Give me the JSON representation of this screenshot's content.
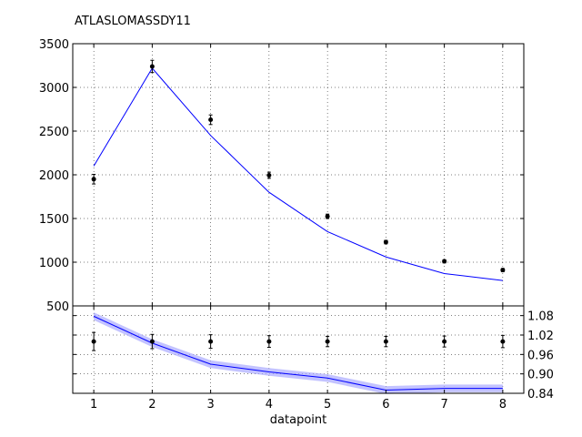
{
  "chart_data": {
    "type": "line",
    "title": "ATLASLOMASSDY11",
    "xlabel": "datapoint",
    "x": [
      1,
      2,
      3,
      4,
      5,
      6,
      7,
      8
    ],
    "main_panel": {
      "ylim": [
        500,
        3500
      ],
      "yticks": [
        500,
        1000,
        1500,
        2000,
        2500,
        3000,
        3500
      ],
      "grid": true,
      "series": [
        {
          "kind": "points_with_errorbars",
          "color": "#000000",
          "values": [
            1950,
            3240,
            2630,
            1995,
            1525,
            1230,
            1010,
            910
          ],
          "errors": [
            55,
            70,
            55,
            35,
            25,
            20,
            18,
            18
          ]
        },
        {
          "kind": "line",
          "color": "#0000ff",
          "values": [
            2100,
            3220,
            2450,
            1800,
            1350,
            1060,
            870,
            790
          ]
        }
      ]
    },
    "ratio_panel": {
      "ylim": [
        0.84,
        1.11
      ],
      "yticks": [
        0.84,
        0.9,
        0.96,
        1.02,
        1.08
      ],
      "ytick_labels": [
        "0.84",
        "0.90",
        "0.96",
        "1.02",
        "1.08"
      ],
      "grid": true,
      "series": [
        {
          "kind": "points_with_errorbars",
          "color": "#000000",
          "values": [
            1.0,
            1.0,
            1.0,
            1.0,
            1.0,
            1.0,
            1.0,
            1.0
          ],
          "errors": [
            0.028,
            0.022,
            0.021,
            0.018,
            0.016,
            0.016,
            0.017,
            0.019
          ]
        },
        {
          "kind": "band_line",
          "color": "#0000ff",
          "band_color": "#aaaaff",
          "values": [
            1.078,
            0.995,
            0.93,
            0.906,
            0.887,
            0.85,
            0.855,
            0.855
          ],
          "band": 0.012
        }
      ]
    },
    "xticks": [
      "1",
      "2",
      "3",
      "4",
      "5",
      "6",
      "7",
      "8"
    ]
  }
}
